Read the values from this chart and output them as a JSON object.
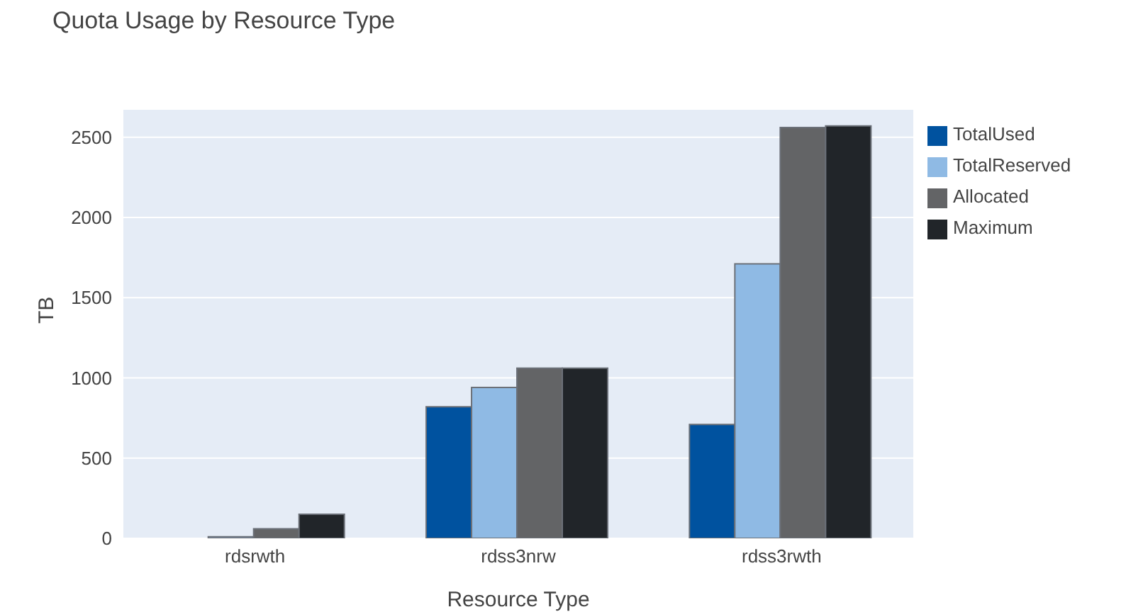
{
  "chart_data": {
    "type": "bar",
    "title": "Quota Usage by Resource Type",
    "xlabel": "Resource Type",
    "ylabel": "TB",
    "categories": [
      "rdsrwth",
      "rdss3nrw",
      "rdss3rwth"
    ],
    "series": [
      {
        "name": "TotalUsed",
        "color": "#00529f",
        "values": [
          0,
          820,
          710
        ]
      },
      {
        "name": "TotalReserved",
        "color": "#8fbae4",
        "values": [
          10,
          940,
          1710
        ]
      },
      {
        "name": "Allocated",
        "color": "#636466",
        "values": [
          60,
          1060,
          2560
        ]
      },
      {
        "name": "Maximum",
        "color": "#212529",
        "values": [
          150,
          1060,
          2570
        ]
      }
    ],
    "ylim": [
      0,
      2675
    ],
    "yticks": [
      0,
      500,
      1000,
      1500,
      2000,
      2500
    ],
    "grid": "y",
    "legend": "top right"
  }
}
